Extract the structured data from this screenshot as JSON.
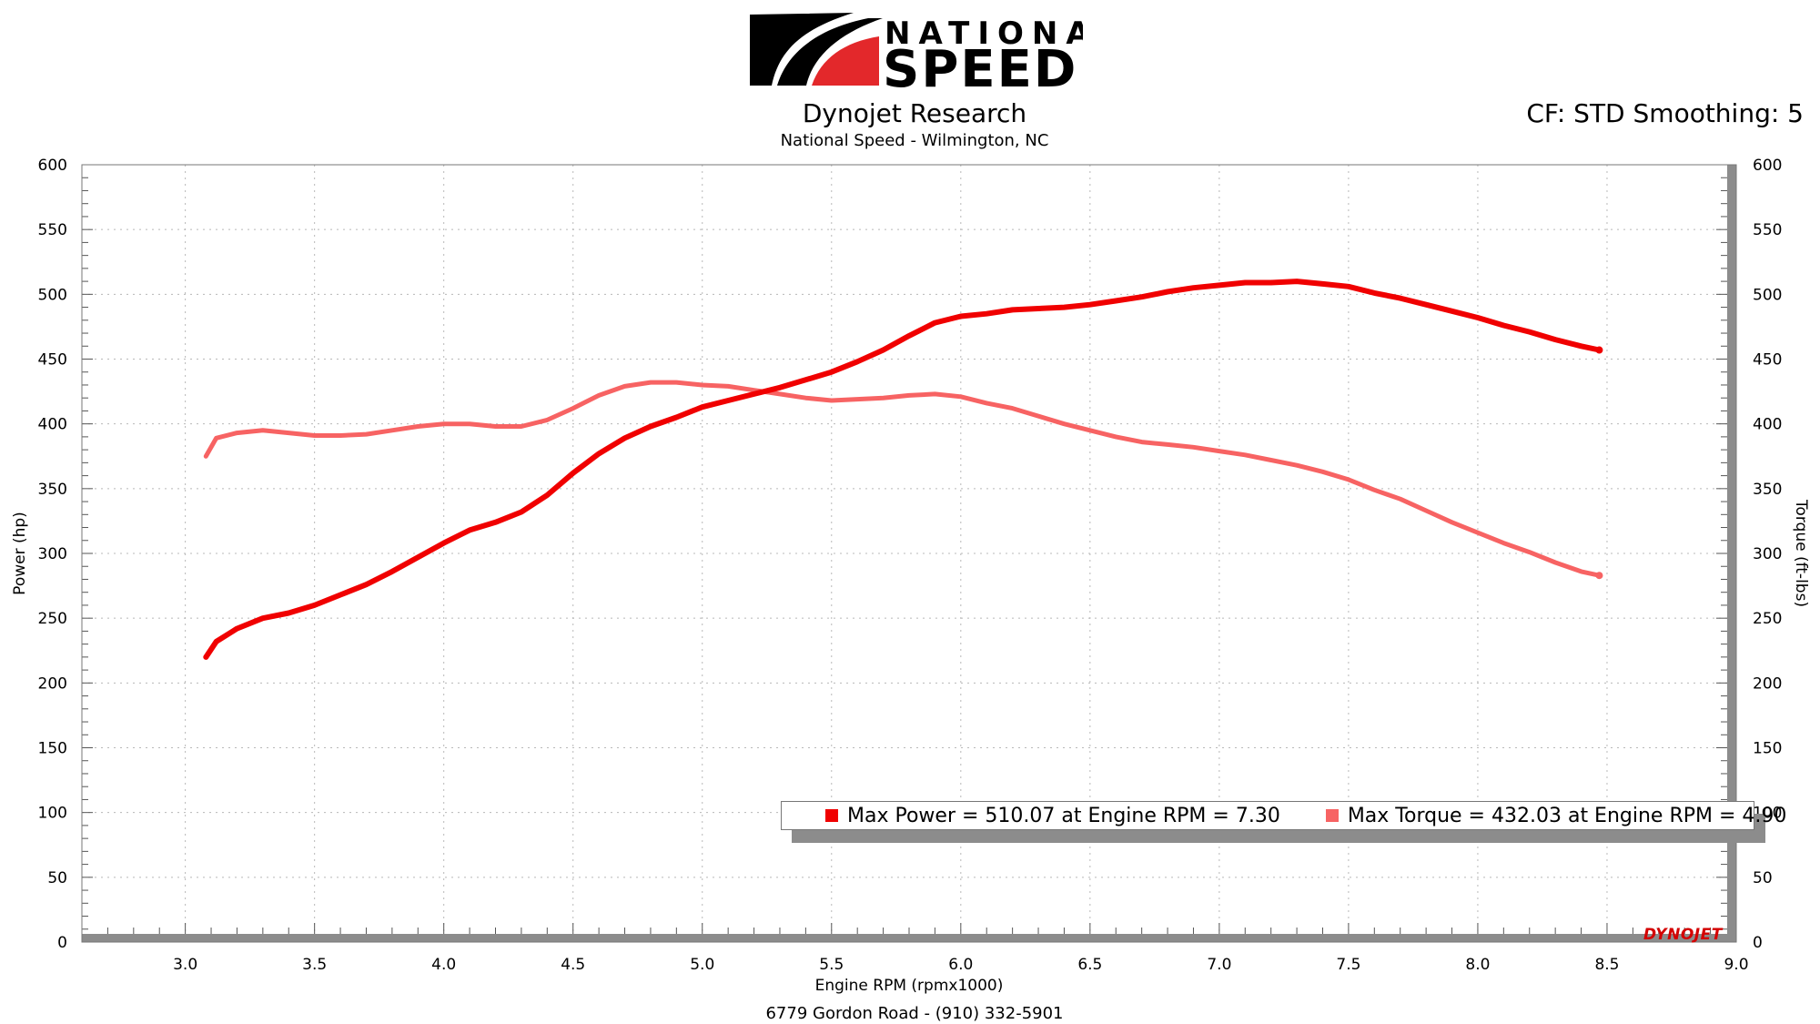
{
  "header": {
    "logo_line1": "NATIONAL",
    "logo_line2": "SPEED",
    "subtitle": "Dynojet Research",
    "location": "National Speed - Wilmington, NC",
    "correction": "CF: STD Smoothing: 5"
  },
  "footer": {
    "address": "6779 Gordon Road - (910) 332-5901"
  },
  "watermark": "DYNOJET",
  "legend": {
    "power": "Max Power = 510.07 at Engine RPM = 7.30",
    "torque": "Max Torque = 432.03 at Engine RPM = 4.90"
  },
  "colors": {
    "power": "#f00000",
    "torque": "#f76363",
    "logo_red": "#e3282b",
    "grid": "#b8b8b8"
  },
  "chart_data": {
    "type": "line",
    "xlabel": "Engine RPM (rpmx1000)",
    "ylabel": "Power (hp)",
    "y2label": "Torque (ft-lbs)",
    "xlim": [
      2.6,
      9.0
    ],
    "ylim": [
      0,
      600
    ],
    "y2lim": [
      0,
      600
    ],
    "x_ticks": [
      "3.0",
      "3.5",
      "4.0",
      "4.5",
      "5.0",
      "5.5",
      "6.0",
      "6.5",
      "7.0",
      "7.5",
      "8.0",
      "8.5",
      "9.0"
    ],
    "y_ticks": [
      "0",
      "50",
      "100",
      "150",
      "200",
      "250",
      "300",
      "350",
      "400",
      "450",
      "500",
      "550",
      "600"
    ],
    "grid": true,
    "legend_position": "bottom-right",
    "series": [
      {
        "key": "power",
        "axis": "left",
        "x": [
          3.08,
          3.12,
          3.2,
          3.3,
          3.4,
          3.5,
          3.6,
          3.7,
          3.8,
          3.9,
          4.0,
          4.1,
          4.2,
          4.3,
          4.4,
          4.5,
          4.6,
          4.7,
          4.8,
          4.9,
          5.0,
          5.1,
          5.2,
          5.3,
          5.4,
          5.5,
          5.6,
          5.7,
          5.8,
          5.9,
          6.0,
          6.1,
          6.2,
          6.3,
          6.4,
          6.5,
          6.6,
          6.7,
          6.8,
          6.9,
          7.0,
          7.1,
          7.2,
          7.3,
          7.4,
          7.5,
          7.6,
          7.7,
          7.8,
          7.9,
          8.0,
          8.1,
          8.2,
          8.3,
          8.4,
          8.47
        ],
        "y": [
          220,
          232,
          242,
          250,
          254,
          260,
          268,
          276,
          286,
          297,
          308,
          318,
          324,
          332,
          345,
          362,
          377,
          389,
          398,
          405,
          413,
          418,
          423,
          428,
          434,
          440,
          448,
          457,
          468,
          478,
          483,
          485,
          488,
          489,
          490,
          492,
          495,
          498,
          502,
          505,
          507,
          509,
          509,
          510,
          508,
          506,
          501,
          497,
          492,
          487,
          482,
          476,
          471,
          465,
          460,
          457
        ]
      },
      {
        "key": "torque",
        "axis": "right",
        "x": [
          3.08,
          3.12,
          3.2,
          3.3,
          3.4,
          3.5,
          3.6,
          3.7,
          3.8,
          3.9,
          4.0,
          4.1,
          4.2,
          4.3,
          4.4,
          4.5,
          4.6,
          4.7,
          4.8,
          4.9,
          5.0,
          5.1,
          5.2,
          5.3,
          5.4,
          5.5,
          5.6,
          5.7,
          5.8,
          5.9,
          6.0,
          6.1,
          6.2,
          6.3,
          6.4,
          6.5,
          6.6,
          6.7,
          6.8,
          6.9,
          7.0,
          7.1,
          7.2,
          7.3,
          7.4,
          7.5,
          7.6,
          7.7,
          7.8,
          7.9,
          8.0,
          8.1,
          8.2,
          8.3,
          8.4,
          8.47
        ],
        "y": [
          375,
          389,
          393,
          395,
          393,
          391,
          391,
          392,
          395,
          398,
          400,
          400,
          398,
          398,
          403,
          412,
          422,
          429,
          432,
          432,
          430,
          429,
          426,
          423,
          420,
          418,
          419,
          420,
          422,
          423,
          421,
          416,
          412,
          406,
          400,
          395,
          390,
          386,
          384,
          382,
          379,
          376,
          372,
          368,
          363,
          357,
          349,
          342,
          333,
          324,
          316,
          308,
          301,
          293,
          286,
          283
        ]
      }
    ]
  }
}
